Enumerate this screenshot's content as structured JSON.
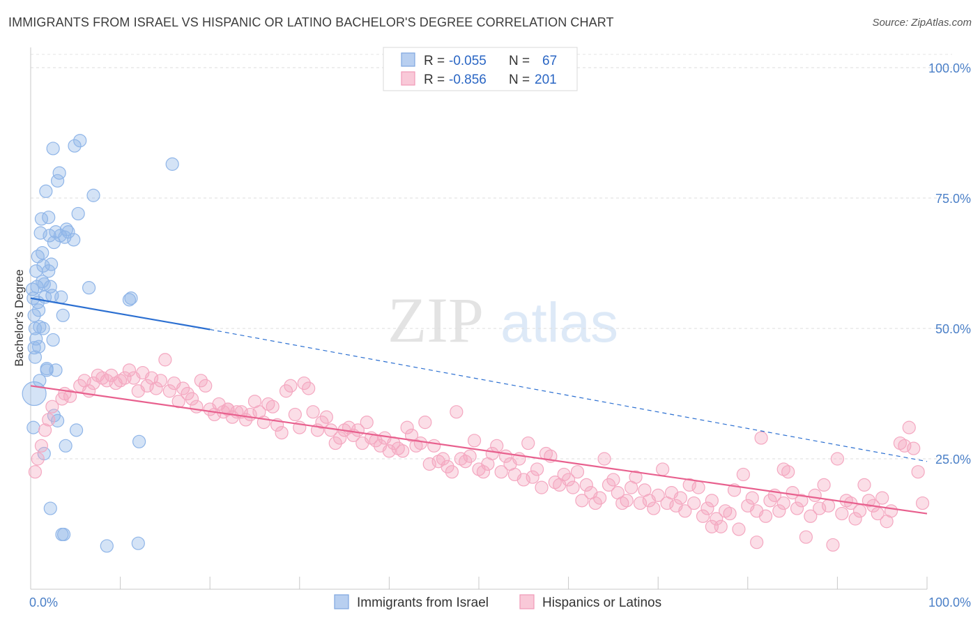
{
  "title": "IMMIGRANTS FROM ISRAEL VS HISPANIC OR LATINO BACHELOR'S DEGREE CORRELATION CHART",
  "source": "Source: ZipAtlas.com",
  "watermark": {
    "zip": "ZIP",
    "atlas": "atlas"
  },
  "legend_top": [
    {
      "r_label": "R = ",
      "r_value": "-0.055",
      "n_label": "N = ",
      "n_value": "67"
    },
    {
      "r_label": "R = ",
      "r_value": "-0.856",
      "n_label": "N = ",
      "n_value": "201"
    }
  ],
  "chart_data": {
    "type": "scatter",
    "xlabel": "",
    "ylabel": "Bachelor's Degree",
    "xlim": [
      0,
      100
    ],
    "ylim": [
      0,
      100
    ],
    "x_ticks": [
      {
        "value": 0,
        "label": "0.0%"
      },
      {
        "value": 100,
        "label": "100.0%"
      }
    ],
    "y_ticks": [
      {
        "value": 25,
        "label": "25.0%"
      },
      {
        "value": 50,
        "label": "50.0%"
      },
      {
        "value": 75,
        "label": "75.0%"
      },
      {
        "value": 100,
        "label": "100.0%"
      }
    ],
    "grid": true,
    "legend_position": "bottom",
    "series": [
      {
        "name": "Immigrants from Israel",
        "color": "#8fb5e8",
        "line_color": "#2b6fd1",
        "trend": {
          "x0": 0,
          "y0": 55.8,
          "x1": 20,
          "y1": 49.8,
          "solid_until": 20,
          "x_end": 100,
          "y_end": 24.5
        },
        "points": [
          [
            0.2,
            57.5
          ],
          [
            0.3,
            55.8
          ],
          [
            0.4,
            52.5
          ],
          [
            0.5,
            50.0
          ],
          [
            0.4,
            46.3
          ],
          [
            0.5,
            44.5
          ],
          [
            0.4,
            37.5
          ],
          [
            0.8,
            63.8
          ],
          [
            0.6,
            61.0
          ],
          [
            0.7,
            58.0
          ],
          [
            0.8,
            55.0
          ],
          [
            0.9,
            53.5
          ],
          [
            1.0,
            50.3
          ],
          [
            0.9,
            46.5
          ],
          [
            1.1,
            68.3
          ],
          [
            1.2,
            71.0
          ],
          [
            1.3,
            64.5
          ],
          [
            1.4,
            62.0
          ],
          [
            1.5,
            58.5
          ],
          [
            1.6,
            56.0
          ],
          [
            1.4,
            50.0
          ],
          [
            1.8,
            42.0
          ],
          [
            1.5,
            26.0
          ],
          [
            2.0,
            71.3
          ],
          [
            2.1,
            67.8
          ],
          [
            2.0,
            61.0
          ],
          [
            2.2,
            58.0
          ],
          [
            2.3,
            62.3
          ],
          [
            2.4,
            56.3
          ],
          [
            2.5,
            47.8
          ],
          [
            1.8,
            42.3
          ],
          [
            2.2,
            15.5
          ],
          [
            2.5,
            84.5
          ],
          [
            2.6,
            66.5
          ],
          [
            2.8,
            68.5
          ],
          [
            3.0,
            78.3
          ],
          [
            3.2,
            79.8
          ],
          [
            3.3,
            67.8
          ],
          [
            3.4,
            56.0
          ],
          [
            3.6,
            52.5
          ],
          [
            3.8,
            67.5
          ],
          [
            4.0,
            69.0
          ],
          [
            4.2,
            68.5
          ],
          [
            3.5,
            10.5
          ],
          [
            3.7,
            10.5
          ],
          [
            3.9,
            27.5
          ],
          [
            4.8,
            67.0
          ],
          [
            4.9,
            85.0
          ],
          [
            5.3,
            72.0
          ],
          [
            5.5,
            86.0
          ],
          [
            5.1,
            30.5
          ],
          [
            6.5,
            57.8
          ],
          [
            7.0,
            75.5
          ],
          [
            11.0,
            55.5
          ],
          [
            11.2,
            55.8
          ],
          [
            12.1,
            28.3
          ],
          [
            12.0,
            8.8
          ],
          [
            8.5,
            8.3
          ],
          [
            15.8,
            81.5
          ],
          [
            3.0,
            32.3
          ],
          [
            1.7,
            76.3
          ],
          [
            2.8,
            42.0
          ],
          [
            1.0,
            40.0
          ],
          [
            0.6,
            48.0
          ],
          [
            1.3,
            59.0
          ],
          [
            2.6,
            33.3
          ],
          [
            0.3,
            31.0
          ]
        ]
      },
      {
        "name": "Hispanics or Latinos",
        "color": "#f4a7c0",
        "line_color": "#e8608e",
        "trend": {
          "x0": 0,
          "y0": 39.0,
          "x1": 100,
          "y1": 14.5
        },
        "points": [
          [
            0.5,
            22.5
          ],
          [
            0.8,
            25.0
          ],
          [
            1.2,
            27.5
          ],
          [
            1.6,
            30.5
          ],
          [
            2.0,
            32.5
          ],
          [
            2.4,
            35.0
          ],
          [
            3.5,
            36.5
          ],
          [
            3.8,
            37.5
          ],
          [
            4.4,
            37.0
          ],
          [
            5.5,
            39.0
          ],
          [
            6.0,
            40.0
          ],
          [
            6.5,
            38.0
          ],
          [
            7.0,
            39.5
          ],
          [
            7.5,
            41.0
          ],
          [
            8.0,
            40.5
          ],
          [
            8.5,
            40.0
          ],
          [
            9.0,
            41.0
          ],
          [
            9.5,
            39.5
          ],
          [
            10.0,
            40.0
          ],
          [
            10.5,
            40.5
          ],
          [
            11.0,
            42.0
          ],
          [
            11.5,
            40.5
          ],
          [
            12.0,
            38.0
          ],
          [
            12.5,
            41.5
          ],
          [
            13.0,
            39.0
          ],
          [
            13.5,
            40.5
          ],
          [
            14.0,
            38.5
          ],
          [
            14.5,
            40.0
          ],
          [
            15.0,
            44.0
          ],
          [
            15.5,
            38.0
          ],
          [
            16.0,
            39.5
          ],
          [
            16.5,
            36.0
          ],
          [
            17.0,
            38.5
          ],
          [
            17.5,
            37.5
          ],
          [
            18.0,
            36.5
          ],
          [
            18.5,
            35.0
          ],
          [
            19.0,
            40.0
          ],
          [
            19.5,
            39.0
          ],
          [
            20.0,
            34.5
          ],
          [
            20.5,
            33.5
          ],
          [
            21.0,
            35.5
          ],
          [
            21.5,
            34.0
          ],
          [
            22.0,
            34.5
          ],
          [
            22.5,
            33.0
          ],
          [
            23.0,
            34.0
          ],
          [
            23.5,
            34.0
          ],
          [
            24.0,
            32.5
          ],
          [
            24.5,
            33.5
          ],
          [
            25.0,
            36.0
          ],
          [
            25.5,
            34.0
          ],
          [
            26.0,
            32.0
          ],
          [
            26.5,
            35.5
          ],
          [
            27.0,
            35.0
          ],
          [
            27.5,
            31.5
          ],
          [
            28.0,
            30.0
          ],
          [
            28.5,
            38.0
          ],
          [
            29.0,
            39.0
          ],
          [
            29.5,
            33.5
          ],
          [
            30.0,
            31.0
          ],
          [
            30.5,
            39.5
          ],
          [
            31.0,
            38.5
          ],
          [
            31.5,
            34.0
          ],
          [
            32.0,
            30.5
          ],
          [
            32.5,
            32.0
          ],
          [
            33.0,
            33.0
          ],
          [
            33.5,
            30.5
          ],
          [
            34.0,
            28.0
          ],
          [
            34.5,
            29.0
          ],
          [
            35.0,
            30.5
          ],
          [
            35.5,
            31.0
          ],
          [
            36.0,
            29.5
          ],
          [
            36.5,
            30.5
          ],
          [
            37.0,
            28.0
          ],
          [
            37.5,
            32.0
          ],
          [
            38.0,
            29.0
          ],
          [
            38.5,
            28.5
          ],
          [
            39.0,
            27.5
          ],
          [
            39.5,
            29.0
          ],
          [
            40.0,
            26.5
          ],
          [
            40.5,
            28.0
          ],
          [
            41.0,
            27.0
          ],
          [
            41.5,
            26.5
          ],
          [
            42.0,
            31.0
          ],
          [
            42.5,
            29.5
          ],
          [
            43.0,
            27.5
          ],
          [
            43.5,
            28.0
          ],
          [
            44.0,
            32.0
          ],
          [
            44.5,
            24.0
          ],
          [
            45.0,
            27.5
          ],
          [
            45.5,
            24.5
          ],
          [
            46.0,
            25.0
          ],
          [
            46.5,
            23.5
          ],
          [
            47.0,
            22.5
          ],
          [
            47.5,
            34.0
          ],
          [
            48.0,
            25.0
          ],
          [
            48.5,
            24.5
          ],
          [
            49.0,
            25.5
          ],
          [
            49.5,
            28.5
          ],
          [
            50.0,
            23.0
          ],
          [
            50.5,
            22.5
          ],
          [
            51.0,
            24.0
          ],
          [
            51.5,
            26.0
          ],
          [
            52.0,
            27.5
          ],
          [
            52.5,
            22.5
          ],
          [
            53.0,
            25.5
          ],
          [
            53.5,
            24.0
          ],
          [
            54.0,
            22.0
          ],
          [
            54.5,
            25.0
          ],
          [
            55.0,
            21.0
          ],
          [
            55.5,
            28.0
          ],
          [
            56.0,
            21.5
          ],
          [
            56.5,
            23.0
          ],
          [
            57.0,
            19.5
          ],
          [
            57.5,
            26.0
          ],
          [
            58.0,
            25.5
          ],
          [
            58.5,
            20.5
          ],
          [
            59.0,
            20.0
          ],
          [
            59.5,
            22.0
          ],
          [
            60.0,
            21.0
          ],
          [
            60.5,
            19.5
          ],
          [
            61.0,
            22.5
          ],
          [
            61.5,
            17.0
          ],
          [
            62.0,
            20.0
          ],
          [
            62.5,
            18.5
          ],
          [
            63.0,
            16.5
          ],
          [
            63.5,
            17.5
          ],
          [
            64.0,
            25.0
          ],
          [
            64.5,
            20.0
          ],
          [
            65.0,
            21.0
          ],
          [
            65.5,
            18.5
          ],
          [
            66.0,
            16.5
          ],
          [
            66.5,
            17.0
          ],
          [
            67.0,
            19.5
          ],
          [
            67.5,
            21.5
          ],
          [
            68.0,
            16.5
          ],
          [
            68.5,
            19.0
          ],
          [
            69.0,
            17.0
          ],
          [
            69.5,
            15.5
          ],
          [
            70.0,
            18.0
          ],
          [
            70.5,
            23.0
          ],
          [
            71.0,
            16.5
          ],
          [
            71.5,
            18.5
          ],
          [
            72.0,
            16.0
          ],
          [
            72.5,
            17.5
          ],
          [
            73.0,
            15.0
          ],
          [
            73.5,
            20.0
          ],
          [
            74.0,
            16.5
          ],
          [
            74.5,
            19.5
          ],
          [
            75.0,
            14.0
          ],
          [
            75.5,
            15.5
          ],
          [
            76.0,
            17.0
          ],
          [
            76.5,
            13.5
          ],
          [
            77.0,
            12.0
          ],
          [
            77.5,
            15.0
          ],
          [
            78.0,
            14.5
          ],
          [
            78.5,
            19.0
          ],
          [
            79.0,
            11.5
          ],
          [
            79.5,
            22.0
          ],
          [
            80.0,
            16.0
          ],
          [
            80.5,
            17.5
          ],
          [
            81.0,
            15.0
          ],
          [
            81.5,
            29.0
          ],
          [
            82.0,
            14.0
          ],
          [
            82.5,
            17.0
          ],
          [
            83.0,
            18.0
          ],
          [
            83.5,
            15.0
          ],
          [
            84.0,
            16.5
          ],
          [
            84.5,
            22.5
          ],
          [
            85.0,
            18.5
          ],
          [
            85.5,
            15.5
          ],
          [
            86.0,
            17.0
          ],
          [
            86.5,
            10.0
          ],
          [
            87.0,
            14.0
          ],
          [
            87.5,
            18.0
          ],
          [
            88.0,
            15.5
          ],
          [
            88.5,
            20.0
          ],
          [
            89.0,
            16.0
          ],
          [
            89.5,
            8.5
          ],
          [
            90.0,
            25.0
          ],
          [
            90.5,
            14.5
          ],
          [
            91.0,
            17.0
          ],
          [
            91.5,
            16.5
          ],
          [
            92.0,
            13.5
          ],
          [
            92.5,
            15.0
          ],
          [
            93.0,
            20.0
          ],
          [
            93.5,
            17.0
          ],
          [
            94.0,
            16.0
          ],
          [
            94.5,
            14.5
          ],
          [
            95.0,
            17.5
          ],
          [
            95.5,
            13.0
          ],
          [
            96.0,
            15.0
          ],
          [
            97.0,
            28.0
          ],
          [
            97.5,
            27.5
          ],
          [
            98.0,
            31.0
          ],
          [
            98.5,
            27.0
          ],
          [
            99.0,
            22.5
          ],
          [
            99.5,
            16.5
          ],
          [
            84.0,
            23.0
          ],
          [
            81.0,
            9.0
          ],
          [
            76.0,
            12.0
          ],
          [
            22.0,
            34.5
          ]
        ]
      }
    ]
  }
}
